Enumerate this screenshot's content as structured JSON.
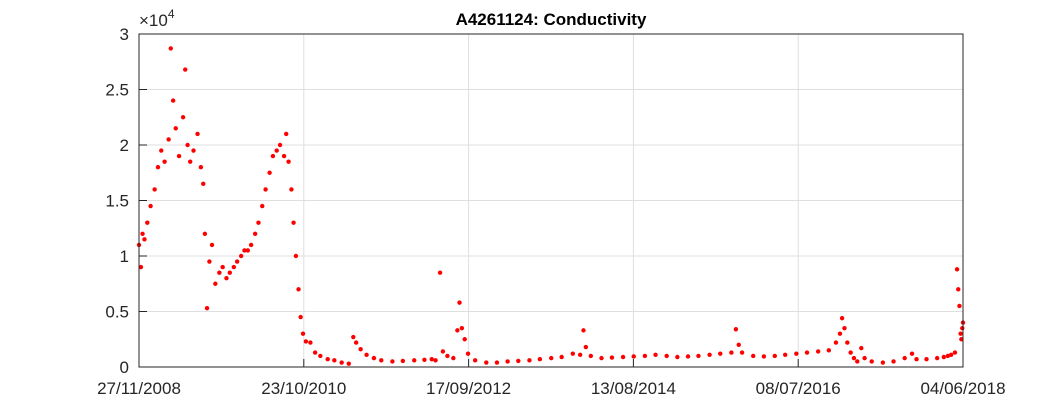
{
  "chart_data": {
    "type": "scatter",
    "title": "A4261124: Conductivity",
    "xlabel": "",
    "ylabel": "",
    "exponent_label": {
      "base": "×10",
      "power": "4"
    },
    "y_tick_labels": [
      "0",
      "0.5",
      "1",
      "1.5",
      "2",
      "2.5",
      "3"
    ],
    "y_ticks": [
      0,
      5000,
      10000,
      15000,
      20000,
      25000,
      30000
    ],
    "ylim": [
      0,
      30000
    ],
    "x_tick_labels": [
      "27/11/2008",
      "23/10/2010",
      "17/09/2012",
      "13/08/2014",
      "08/07/2016",
      "04/06/2018"
    ],
    "xlim": [
      "2008-11-27",
      "2018-06-04"
    ],
    "grid": true,
    "marker_color": "#ff0000",
    "series": [
      {
        "points": [
          [
            "2008-11-27",
            11000
          ],
          [
            "2008-12-05",
            9000
          ],
          [
            "2008-12-12",
            12000
          ],
          [
            "2008-12-20",
            11500
          ],
          [
            "2009-01-01",
            13000
          ],
          [
            "2009-01-15",
            14500
          ],
          [
            "2009-02-01",
            16000
          ],
          [
            "2009-02-15",
            18000
          ],
          [
            "2009-03-01",
            19500
          ],
          [
            "2009-03-15",
            18500
          ],
          [
            "2009-04-01",
            20500
          ],
          [
            "2009-04-10",
            28700
          ],
          [
            "2009-04-20",
            24000
          ],
          [
            "2009-05-01",
            21500
          ],
          [
            "2009-05-15",
            19000
          ],
          [
            "2009-06-01",
            22500
          ],
          [
            "2009-06-10",
            26800
          ],
          [
            "2009-06-20",
            20000
          ],
          [
            "2009-07-01",
            18500
          ],
          [
            "2009-07-15",
            19500
          ],
          [
            "2009-08-01",
            21000
          ],
          [
            "2009-08-15",
            18000
          ],
          [
            "2009-08-25",
            16500
          ],
          [
            "2009-09-01",
            12000
          ],
          [
            "2009-09-10",
            5300
          ],
          [
            "2009-09-20",
            9500
          ],
          [
            "2009-10-01",
            11000
          ],
          [
            "2009-10-15",
            7500
          ],
          [
            "2009-11-01",
            8500
          ],
          [
            "2009-11-15",
            9000
          ],
          [
            "2009-12-01",
            8000
          ],
          [
            "2009-12-15",
            8500
          ],
          [
            "2010-01-01",
            9000
          ],
          [
            "2010-01-15",
            9500
          ],
          [
            "2010-02-01",
            10000
          ],
          [
            "2010-02-15",
            10500
          ],
          [
            "2010-03-01",
            10500
          ],
          [
            "2010-03-15",
            11000
          ],
          [
            "2010-04-01",
            12000
          ],
          [
            "2010-04-15",
            13000
          ],
          [
            "2010-05-01",
            14500
          ],
          [
            "2010-05-15",
            16000
          ],
          [
            "2010-06-01",
            17500
          ],
          [
            "2010-06-15",
            19000
          ],
          [
            "2010-07-01",
            19500
          ],
          [
            "2010-07-15",
            20000
          ],
          [
            "2010-08-01",
            19000
          ],
          [
            "2010-08-10",
            21000
          ],
          [
            "2010-08-20",
            18500
          ],
          [
            "2010-09-01",
            16000
          ],
          [
            "2010-09-10",
            13000
          ],
          [
            "2010-09-20",
            10000
          ],
          [
            "2010-10-01",
            7000
          ],
          [
            "2010-10-10",
            4500
          ],
          [
            "2010-10-20",
            3000
          ],
          [
            "2010-11-01",
            2300
          ],
          [
            "2010-11-20",
            2200
          ],
          [
            "2010-12-10",
            1300
          ],
          [
            "2011-01-01",
            1000
          ],
          [
            "2011-02-01",
            700
          ],
          [
            "2011-03-01",
            600
          ],
          [
            "2011-04-01",
            400
          ],
          [
            "2011-05-01",
            300
          ],
          [
            "2011-05-20",
            2700
          ],
          [
            "2011-06-01",
            2200
          ],
          [
            "2011-06-20",
            1600
          ],
          [
            "2011-07-15",
            1100
          ],
          [
            "2011-08-15",
            800
          ],
          [
            "2011-09-15",
            600
          ],
          [
            "2011-11-01",
            500
          ],
          [
            "2011-12-15",
            550
          ],
          [
            "2012-02-01",
            600
          ],
          [
            "2012-03-15",
            650
          ],
          [
            "2012-04-15",
            700
          ],
          [
            "2012-05-01",
            600
          ],
          [
            "2012-05-20",
            8500
          ],
          [
            "2012-06-01",
            1400
          ],
          [
            "2012-06-20",
            1000
          ],
          [
            "2012-07-15",
            800
          ],
          [
            "2012-08-01",
            3300
          ],
          [
            "2012-08-10",
            5800
          ],
          [
            "2012-08-20",
            3500
          ],
          [
            "2012-09-01",
            2500
          ],
          [
            "2012-09-15",
            1200
          ],
          [
            "2012-10-15",
            600
          ],
          [
            "2012-12-01",
            400
          ],
          [
            "2013-01-15",
            400
          ],
          [
            "2013-03-01",
            500
          ],
          [
            "2013-04-15",
            550
          ],
          [
            "2013-06-01",
            600
          ],
          [
            "2013-07-15",
            700
          ],
          [
            "2013-09-01",
            800
          ],
          [
            "2013-10-15",
            900
          ],
          [
            "2013-12-01",
            1200
          ],
          [
            "2014-01-01",
            1100
          ],
          [
            "2014-01-15",
            3300
          ],
          [
            "2014-01-25",
            1800
          ],
          [
            "2014-02-15",
            1000
          ],
          [
            "2014-04-01",
            800
          ],
          [
            "2014-05-15",
            850
          ],
          [
            "2014-07-01",
            900
          ],
          [
            "2014-08-15",
            950
          ],
          [
            "2014-10-01",
            1000
          ],
          [
            "2014-11-15",
            1100
          ],
          [
            "2015-01-01",
            1000
          ],
          [
            "2015-02-15",
            900
          ],
          [
            "2015-04-01",
            950
          ],
          [
            "2015-05-15",
            1000
          ],
          [
            "2015-07-01",
            1100
          ],
          [
            "2015-08-15",
            1200
          ],
          [
            "2015-10-01",
            1300
          ],
          [
            "2015-10-20",
            3400
          ],
          [
            "2015-11-01",
            2000
          ],
          [
            "2015-11-15",
            1300
          ],
          [
            "2016-01-01",
            1000
          ],
          [
            "2016-02-15",
            950
          ],
          [
            "2016-04-01",
            1000
          ],
          [
            "2016-05-15",
            1100
          ],
          [
            "2016-07-01",
            1200
          ],
          [
            "2016-08-15",
            1300
          ],
          [
            "2016-10-01",
            1400
          ],
          [
            "2016-11-15",
            1500
          ],
          [
            "2016-12-15",
            2200
          ],
          [
            "2017-01-01",
            3000
          ],
          [
            "2017-01-10",
            4400
          ],
          [
            "2017-01-20",
            3500
          ],
          [
            "2017-02-01",
            2200
          ],
          [
            "2017-02-15",
            1300
          ],
          [
            "2017-03-01",
            800
          ],
          [
            "2017-03-15",
            500
          ],
          [
            "2017-04-01",
            1700
          ],
          [
            "2017-04-15",
            800
          ],
          [
            "2017-05-15",
            500
          ],
          [
            "2017-07-01",
            400
          ],
          [
            "2017-08-15",
            500
          ],
          [
            "2017-10-01",
            800
          ],
          [
            "2017-11-01",
            1200
          ],
          [
            "2017-11-20",
            700
          ],
          [
            "2018-01-01",
            700
          ],
          [
            "2018-02-15",
            800
          ],
          [
            "2018-03-15",
            900
          ],
          [
            "2018-04-01",
            1000
          ],
          [
            "2018-04-15",
            1100
          ],
          [
            "2018-05-01",
            1300
          ],
          [
            "2018-05-10",
            8800
          ],
          [
            "2018-05-15",
            7000
          ],
          [
            "2018-05-20",
            5500
          ],
          [
            "2018-05-25",
            3000
          ],
          [
            "2018-05-28",
            2500
          ],
          [
            "2018-06-01",
            3500
          ],
          [
            "2018-06-04",
            4000
          ]
        ]
      }
    ]
  }
}
